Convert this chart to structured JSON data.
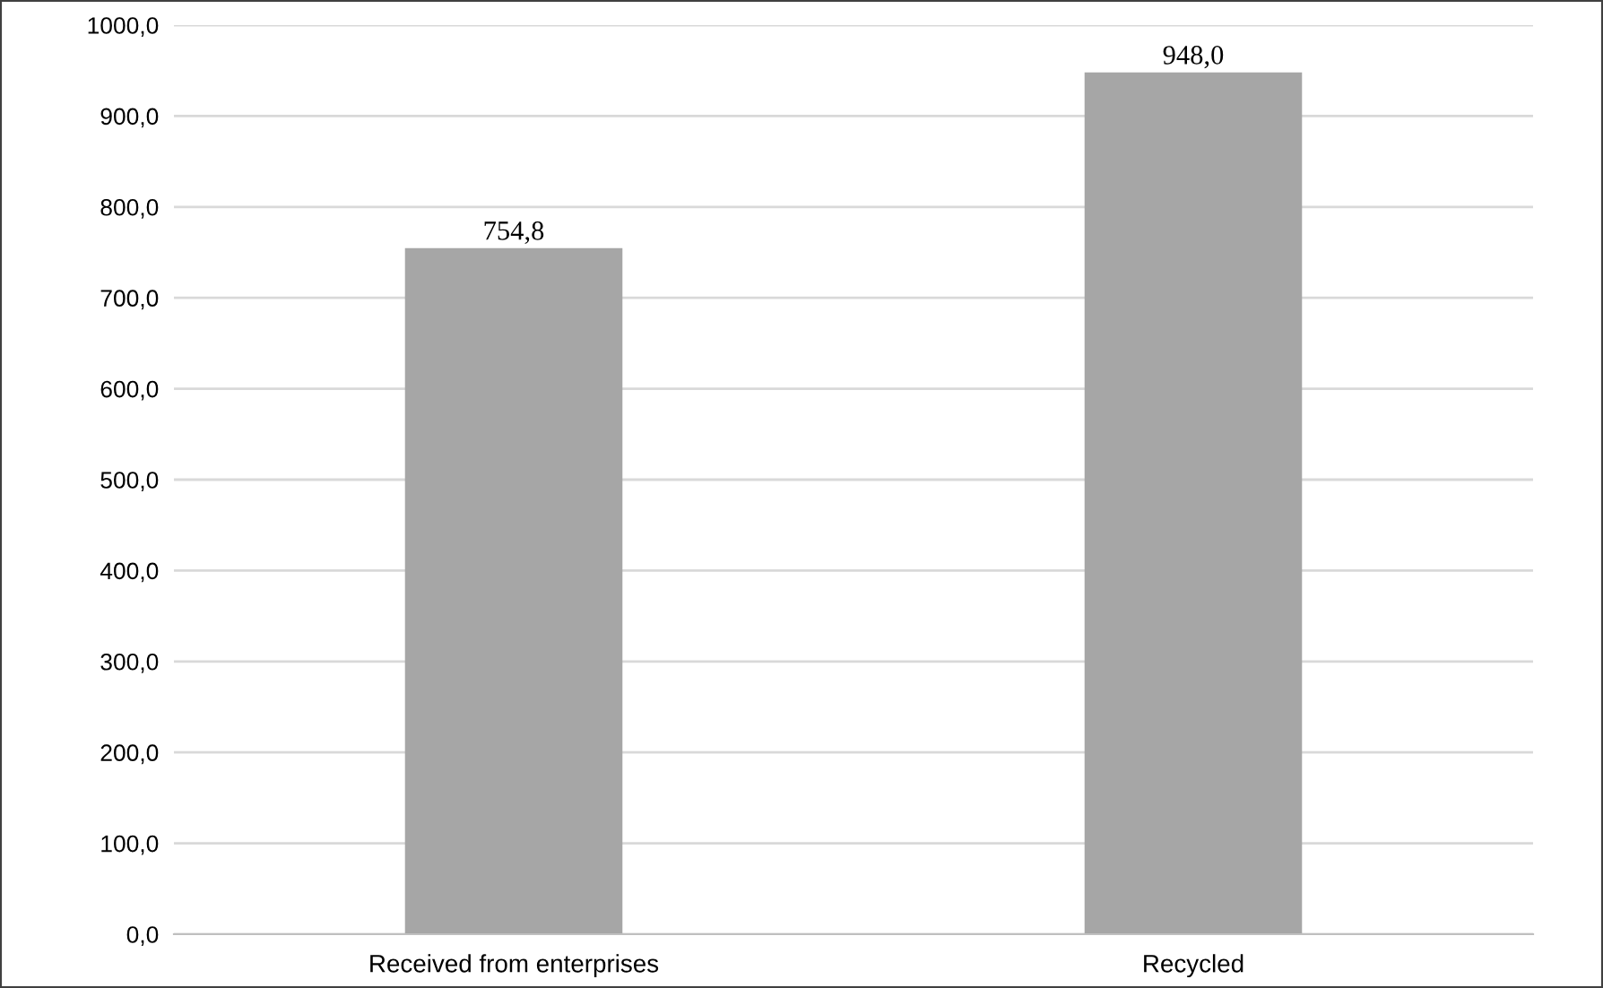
{
  "chart_data": {
    "type": "bar",
    "categories": [
      "Received from enterprises",
      "Recycled"
    ],
    "values": [
      754.8,
      948.0
    ],
    "color": "#a6a6a6",
    "value_labels": [
      "754,8",
      "948,0"
    ],
    "ylim": [
      0,
      1000
    ],
    "yticks": [
      {
        "value": 0,
        "label": "0,0"
      },
      {
        "value": 100,
        "label": "100,0"
      },
      {
        "value": 200,
        "label": "200,0"
      },
      {
        "value": 300,
        "label": "300,0"
      },
      {
        "value": 400,
        "label": "400,0"
      },
      {
        "value": 500,
        "label": "500,0"
      },
      {
        "value": 600,
        "label": "600,0"
      },
      {
        "value": 700,
        "label": "700,0"
      },
      {
        "value": 800,
        "label": "800,0"
      },
      {
        "value": 900,
        "label": "900,0"
      },
      {
        "value": 1000,
        "label": "1000,0"
      }
    ],
    "grid": "y",
    "legend": false
  }
}
